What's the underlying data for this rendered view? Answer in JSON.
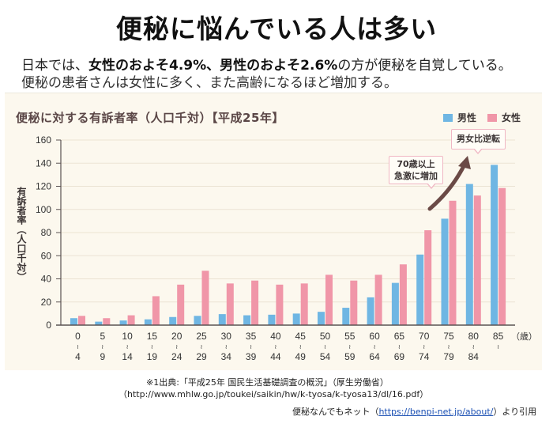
{
  "header": {
    "title": "便秘に悩んでいる人は多い",
    "lead_line1_pre": "日本では、",
    "lead_line1_bold1": "女性のおよそ4.9%",
    "lead_line1_sep": "、",
    "lead_line1_bold2": "男性のおよそ2.6%",
    "lead_line1_post": "の方が便秘を自覚している。",
    "lead_line2": "便秘の患者さんは女性に多く、また高齢になるほど増加する。"
  },
  "colors": {
    "male": "#6fb6e3",
    "female": "#f096a8",
    "panel_bg": "#fcf8ee",
    "gridline": "#ebe3d3",
    "axis": "#5a5252",
    "arrow": "#6b4a46",
    "callout_border": "#f0b7c4"
  },
  "annotations": {
    "callout1_line1": "70歳以上",
    "callout1_line2": "急激に増加",
    "callout2": "男女比逆転"
  },
  "footer": {
    "source_line1": "※1出典:「平成25年 国民生活基礎調査の概況」（厚生労働省）",
    "source_line2": "（http://www.mhlw.go.jp/toukei/saikin/hw/k-tyosa/k-tyosa13/dl/16.pdf）",
    "credit_pre": "便秘なんでもネット（",
    "credit_link": "https://benpi-net.jp/about/",
    "credit_post": "）より引用"
  },
  "chart_data": {
    "type": "bar",
    "title": "便秘に対する有訴者率（人口千対）【平成25年】",
    "xlabel": "（歳）",
    "ylabel": "有訴者率（人口千対）",
    "ylim": [
      0,
      160
    ],
    "yticks": [
      0,
      20,
      40,
      60,
      80,
      100,
      120,
      140,
      160
    ],
    "grid": true,
    "legend_position": "top-right",
    "categories": [
      "0〜4",
      "5〜9",
      "10〜14",
      "15〜19",
      "20〜24",
      "25〜29",
      "30〜34",
      "35〜39",
      "40〜44",
      "45〜49",
      "50〜54",
      "55〜59",
      "60〜64",
      "65〜69",
      "70〜74",
      "75〜79",
      "80〜84",
      "85〜"
    ],
    "category_top": [
      "0",
      "5",
      "10",
      "15",
      "20",
      "25",
      "30",
      "35",
      "40",
      "45",
      "50",
      "55",
      "60",
      "65",
      "70",
      "75",
      "80",
      "85"
    ],
    "category_bottom": [
      "4",
      "9",
      "14",
      "19",
      "24",
      "29",
      "34",
      "39",
      "44",
      "49",
      "54",
      "59",
      "64",
      "69",
      "74",
      "79",
      "84",
      ""
    ],
    "series": [
      {
        "name": "男性",
        "values": [
          6,
          3,
          4,
          5,
          7,
          8,
          9.5,
          8.5,
          9,
          10,
          11.5,
          15,
          24,
          36.5,
          61,
          92,
          122,
          138.5
        ]
      },
      {
        "name": "女性",
        "values": [
          8,
          6,
          8.5,
          25,
          35,
          47,
          36,
          38.5,
          35,
          36,
          43.5,
          38.5,
          43.5,
          52.5,
          82,
          107.5,
          112,
          118.5
        ]
      }
    ]
  }
}
